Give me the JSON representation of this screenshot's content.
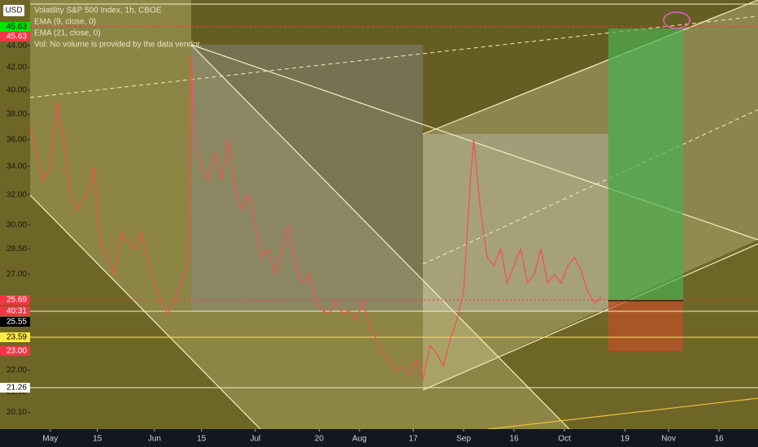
{
  "chart_data": {
    "type": "line",
    "title": "Volatility S&P 500 Index, 1h, CBOE",
    "legend_lines": [
      "EMA (9, close, 0)",
      "EMA (21, close, 0)",
      "Vol: No volume is provided by the data vendor."
    ],
    "currency": "USD",
    "log_scale": true,
    "x": [
      -6,
      -4,
      -2,
      0,
      2,
      4,
      6,
      8,
      11,
      13,
      15,
      17,
      19,
      21,
      23,
      25,
      27,
      29,
      31,
      33,
      35,
      37,
      39,
      41,
      42,
      43,
      45,
      47,
      49,
      51,
      53,
      55,
      57,
      59,
      61,
      63,
      65,
      67,
      69,
      71,
      73,
      75,
      77,
      79,
      81,
      83,
      85,
      87,
      89,
      91,
      93,
      95,
      97,
      99,
      101,
      103,
      105,
      107,
      109,
      111,
      113,
      115,
      117,
      119,
      121,
      123,
      125,
      126,
      128,
      130,
      132,
      134,
      136,
      138,
      140,
      142,
      144,
      146,
      148,
      150,
      152,
      154,
      156,
      158,
      160,
      162,
      164
    ],
    "series": [
      {
        "name": "Volatility S&P 500 Index",
        "color": "#ef5350",
        "values": [
          37,
          35,
          33,
          34,
          39,
          36,
          32,
          31,
          32,
          34,
          29,
          28,
          27,
          29.5,
          29,
          28.5,
          29.5,
          28,
          26.5,
          25.5,
          24.8,
          25.5,
          26.5,
          27.5,
          43,
          36,
          34,
          33,
          35,
          33,
          36,
          32.5,
          31,
          32,
          30,
          28,
          28.5,
          27,
          28.5,
          30,
          27.5,
          26.5,
          27,
          25.5,
          25,
          24.8,
          25.5,
          24.8,
          25,
          24.5,
          25.5,
          24.2,
          23.5,
          22.8,
          22.5,
          22,
          22.2,
          21.8,
          22.5,
          21.6,
          23.2,
          22.8,
          22.2,
          23.5,
          24.5,
          26,
          33,
          36,
          31,
          28,
          27.5,
          28.5,
          26.5,
          27.5,
          28.5,
          26.5,
          27,
          28.5,
          26.5,
          27,
          26.5,
          27.5,
          28,
          27.2,
          26,
          25.4,
          25.7
        ]
      }
    ],
    "xlim": [
      -6,
      210.6
    ],
    "xticks": [
      {
        "value": 0,
        "label": "May"
      },
      {
        "value": 14,
        "label": "15"
      },
      {
        "value": 31,
        "label": "Jun"
      },
      {
        "value": 45,
        "label": "15"
      },
      {
        "value": 61,
        "label": "Jul"
      },
      {
        "value": 80,
        "label": "20"
      },
      {
        "value": 92,
        "label": "Aug"
      },
      {
        "value": 108,
        "label": "17"
      },
      {
        "value": 123,
        "label": "Sep"
      },
      {
        "value": 138,
        "label": "16"
      },
      {
        "value": 153,
        "label": "Oct"
      },
      {
        "value": 171,
        "label": "19"
      },
      {
        "value": 184,
        "label": "Nov"
      },
      {
        "value": 199,
        "label": "16"
      }
    ],
    "ylim": [
      19.4,
      48.5
    ],
    "yticks": [
      {
        "value": 44,
        "label": "44.00"
      },
      {
        "value": 42,
        "label": "42.00"
      },
      {
        "value": 40,
        "label": "40.00"
      },
      {
        "value": 38,
        "label": "38.00"
      },
      {
        "value": 36,
        "label": "36.00"
      },
      {
        "value": 34,
        "label": "34.00"
      },
      {
        "value": 32,
        "label": "32.00"
      },
      {
        "value": 30,
        "label": "30.00"
      },
      {
        "value": 28.5,
        "label": "28.50"
      },
      {
        "value": 27,
        "label": "27.00"
      },
      {
        "value": 22,
        "label": "22.00"
      },
      {
        "value": 21,
        "label": "21.00"
      },
      {
        "value": 20.1,
        "label": "20.10"
      }
    ],
    "price_labels": [
      {
        "label": "45.63",
        "color": "#00e600"
      },
      {
        "label": "45.63",
        "color": "#f23645"
      },
      {
        "label": "25.69",
        "color": "#f23645"
      },
      {
        "label": "40:31",
        "color": "#f23645"
      },
      {
        "label": "25.55",
        "color": "#000000"
      },
      {
        "label": "23.59",
        "color": "#ffeb3b"
      },
      {
        "label": "23.00",
        "color": "#f23645"
      },
      {
        "label": "21.26",
        "color": "#ffffff"
      }
    ]
  }
}
